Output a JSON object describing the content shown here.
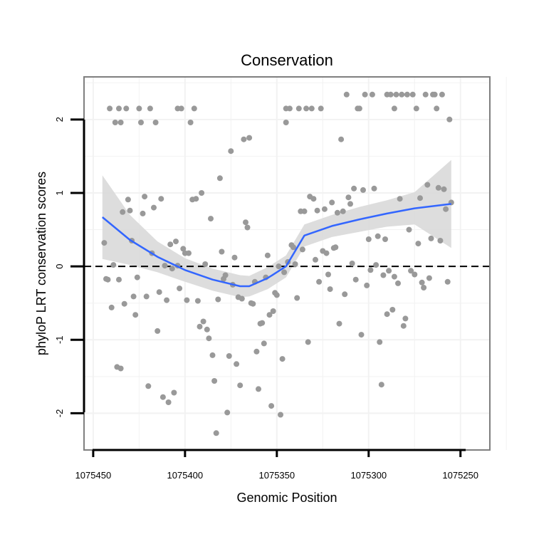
{
  "chart_data": {
    "type": "scatter",
    "title": "Conservation",
    "xlabel": "Genomic Position",
    "ylabel": "phyloP LRT conservation scores",
    "x_reversed": true,
    "xlim": [
      1075455,
      1075234
    ],
    "ylim": [
      -2.5,
      2.58
    ],
    "x_ticks": [
      1075450,
      1075400,
      1075350,
      1075300,
      1075250
    ],
    "x_tick_labels": [
      "1075450",
      "1075400",
      "1075350",
      "1075300",
      "1075250"
    ],
    "y_ticks": [
      -2,
      -1,
      0,
      1,
      2
    ],
    "y_tick_labels": [
      "-2",
      "-1",
      "0",
      "1",
      "2"
    ],
    "reference_line": {
      "y": 0,
      "style": "dashed"
    },
    "colors": {
      "points": "#999999",
      "smooth_line": "#3366ff",
      "ribbon": "#d9d9d9",
      "panel_border": "#7f7f7f",
      "grid": "#f2f2f2",
      "reference": "#000000"
    },
    "series": [
      {
        "name": "scores",
        "points": [
          [
            1075444,
            0.32
          ],
          [
            1075443,
            -0.17
          ],
          [
            1075442,
            -0.18
          ],
          [
            1075441,
            2.15
          ],
          [
            1075440,
            -0.56
          ],
          [
            1075439,
            0.02
          ],
          [
            1075438,
            1.96
          ],
          [
            1075437,
            -1.37
          ],
          [
            1075436,
            2.15
          ],
          [
            1075436,
            -0.18
          ],
          [
            1075435,
            -1.39
          ],
          [
            1075435,
            1.96
          ],
          [
            1075434,
            0.74
          ],
          [
            1075433,
            -0.51
          ],
          [
            1075432,
            2.15
          ],
          [
            1075431,
            0.91
          ],
          [
            1075430,
            0.76
          ],
          [
            1075429,
            0.35
          ],
          [
            1075428,
            -0.41
          ],
          [
            1075427,
            -0.66
          ],
          [
            1075426,
            -0.15
          ],
          [
            1075425,
            2.15
          ],
          [
            1075424,
            1.96
          ],
          [
            1075423,
            0.72
          ],
          [
            1075422,
            0.95
          ],
          [
            1075421,
            -0.41
          ],
          [
            1075420,
            -1.63
          ],
          [
            1075419,
            2.15
          ],
          [
            1075418,
            0.18
          ],
          [
            1075417,
            0.8
          ],
          [
            1075416,
            1.96
          ],
          [
            1075415,
            -0.88
          ],
          [
            1075414,
            -0.35
          ],
          [
            1075413,
            0.92
          ],
          [
            1075412,
            -1.78
          ],
          [
            1075411,
            0.01
          ],
          [
            1075410,
            -0.46
          ],
          [
            1075409,
            -1.85
          ],
          [
            1075408,
            0.3
          ],
          [
            1075407,
            -0.03
          ],
          [
            1075406,
            -1.72
          ],
          [
            1075405,
            0.34
          ],
          [
            1075404,
            2.15
          ],
          [
            1075404,
            0.01
          ],
          [
            1075403,
            -0.3
          ],
          [
            1075402,
            2.15
          ],
          [
            1075401,
            0.24
          ],
          [
            1075400,
            0.18
          ],
          [
            1075399,
            -0.46
          ],
          [
            1075398,
            0.18
          ],
          [
            1075397,
            1.96
          ],
          [
            1075396,
            0.91
          ],
          [
            1075395,
            2.15
          ],
          [
            1075394,
            0.92
          ],
          [
            1075393,
            -0.47
          ],
          [
            1075392,
            -0.82
          ],
          [
            1075391,
            1.0
          ],
          [
            1075390,
            -0.75
          ],
          [
            1075389,
            0.03
          ],
          [
            1075388,
            -0.86
          ],
          [
            1075387,
            -0.98
          ],
          [
            1075386,
            0.65
          ],
          [
            1075385,
            -1.21
          ],
          [
            1075384,
            -1.56
          ],
          [
            1075383,
            -2.27
          ],
          [
            1075382,
            -0.45
          ],
          [
            1075381,
            1.2
          ],
          [
            1075380,
            0.2
          ],
          [
            1075379,
            -0.17
          ],
          [
            1075378,
            -0.12
          ],
          [
            1075377,
            -1.99
          ],
          [
            1075376,
            -1.22
          ],
          [
            1075375,
            1.57
          ],
          [
            1075374,
            -0.25
          ],
          [
            1075373,
            0.12
          ],
          [
            1075372,
            -1.33
          ],
          [
            1075371,
            -0.42
          ],
          [
            1075370,
            -1.62
          ],
          [
            1075369,
            -0.44
          ],
          [
            1075368,
            1.73
          ],
          [
            1075367,
            0.6
          ],
          [
            1075366,
            0.53
          ],
          [
            1075365,
            1.75
          ],
          [
            1075364,
            -0.5
          ],
          [
            1075363,
            -0.51
          ],
          [
            1075362,
            -0.21
          ],
          [
            1075361,
            -1.16
          ],
          [
            1075360,
            -1.67
          ],
          [
            1075359,
            -0.78
          ],
          [
            1075358,
            -0.77
          ],
          [
            1075357,
            -1.05
          ],
          [
            1075356,
            -0.15
          ],
          [
            1075355,
            0.15
          ],
          [
            1075354,
            -0.66
          ],
          [
            1075353,
            -1.9
          ],
          [
            1075352,
            -0.61
          ],
          [
            1075351,
            -0.36
          ],
          [
            1075350,
            -0.39
          ],
          [
            1075349,
            0.0
          ],
          [
            1075348,
            -2.02
          ],
          [
            1075347,
            -1.26
          ],
          [
            1075346,
            -0.08
          ],
          [
            1075345,
            2.15
          ],
          [
            1075345,
            1.96
          ],
          [
            1075344,
            0.06
          ],
          [
            1075343,
            2.15
          ],
          [
            1075342,
            0.29
          ],
          [
            1075341,
            0.26
          ],
          [
            1075340,
            0.03
          ],
          [
            1075339,
            -0.43
          ],
          [
            1075338,
            2.15
          ],
          [
            1075337,
            0.75
          ],
          [
            1075336,
            0.23
          ],
          [
            1075335,
            0.75
          ],
          [
            1075334,
            2.15
          ],
          [
            1075333,
            -1.03
          ],
          [
            1075332,
            0.95
          ],
          [
            1075331,
            2.15
          ],
          [
            1075330,
            0.92
          ],
          [
            1075329,
            0.09
          ],
          [
            1075328,
            0.76
          ],
          [
            1075327,
            -0.21
          ],
          [
            1075326,
            2.15
          ],
          [
            1075325,
            0.21
          ],
          [
            1075324,
            0.78
          ],
          [
            1075323,
            0.18
          ],
          [
            1075322,
            -0.11
          ],
          [
            1075321,
            -0.31
          ],
          [
            1075320,
            0.87
          ],
          [
            1075319,
            0.25
          ],
          [
            1075318,
            0.26
          ],
          [
            1075317,
            0.73
          ],
          [
            1075316,
            -0.78
          ],
          [
            1075315,
            1.73
          ],
          [
            1075314,
            0.75
          ],
          [
            1075313,
            -0.38
          ],
          [
            1075312,
            2.34
          ],
          [
            1075311,
            0.94
          ],
          [
            1075310,
            0.85
          ],
          [
            1075309,
            0.04
          ],
          [
            1075308,
            1.06
          ],
          [
            1075307,
            -0.18
          ],
          [
            1075306,
            2.15
          ],
          [
            1075305,
            2.15
          ],
          [
            1075304,
            -0.93
          ],
          [
            1075303,
            1.04
          ],
          [
            1075302,
            2.34
          ],
          [
            1075301,
            -0.26
          ],
          [
            1075300,
            0.37
          ],
          [
            1075299,
            -0.05
          ],
          [
            1075298,
            2.34
          ],
          [
            1075297,
            1.06
          ],
          [
            1075296,
            0.02
          ],
          [
            1075295,
            0.41
          ],
          [
            1075294,
            -1.03
          ],
          [
            1075293,
            -1.61
          ],
          [
            1075292,
            -0.12
          ],
          [
            1075291,
            0.37
          ],
          [
            1075290,
            2.34
          ],
          [
            1075290,
            -0.65
          ],
          [
            1075289,
            -0.06
          ],
          [
            1075288,
            2.34
          ],
          [
            1075287,
            -0.59
          ],
          [
            1075286,
            2.15
          ],
          [
            1075286,
            -0.14
          ],
          [
            1075285,
            2.34
          ],
          [
            1075284,
            -0.23
          ],
          [
            1075283,
            0.92
          ],
          [
            1075282,
            2.34
          ],
          [
            1075281,
            -0.81
          ],
          [
            1075280,
            -0.71
          ],
          [
            1075279,
            2.34
          ],
          [
            1075278,
            0.5
          ],
          [
            1075277,
            -0.06
          ],
          [
            1075276,
            2.34
          ],
          [
            1075275,
            -0.11
          ],
          [
            1075274,
            2.15
          ],
          [
            1075273,
            0.31
          ],
          [
            1075272,
            0.93
          ],
          [
            1075271,
            -0.22
          ],
          [
            1075270,
            -0.29
          ],
          [
            1075269,
            2.34
          ],
          [
            1075268,
            1.11
          ],
          [
            1075267,
            -0.16
          ],
          [
            1075266,
            0.38
          ],
          [
            1075265,
            2.34
          ],
          [
            1075264,
            2.34
          ],
          [
            1075263,
            2.15
          ],
          [
            1075262,
            1.07
          ],
          [
            1075261,
            0.35
          ],
          [
            1075260,
            2.34
          ],
          [
            1075259,
            1.05
          ],
          [
            1075258,
            0.78
          ],
          [
            1075257,
            -0.21
          ],
          [
            1075256,
            2.0
          ],
          [
            1075255,
            0.87
          ]
        ]
      }
    ],
    "smooth": {
      "x": [
        1075445,
        1075430,
        1075415,
        1075400,
        1075385,
        1075370,
        1075365,
        1075355,
        1075345,
        1075335,
        1075320,
        1075305,
        1075290,
        1075275,
        1075255
      ],
      "y": [
        0.67,
        0.36,
        0.13,
        -0.05,
        -0.18,
        -0.27,
        -0.27,
        -0.16,
        0.0,
        0.42,
        0.55,
        0.64,
        0.72,
        0.79,
        0.85
      ],
      "lower": [
        0.1,
        0.02,
        -0.08,
        -0.21,
        -0.33,
        -0.42,
        -0.41,
        -0.31,
        -0.15,
        0.27,
        0.4,
        0.47,
        0.54,
        0.57,
        0.25
      ],
      "upper": [
        1.24,
        0.7,
        0.34,
        0.11,
        -0.03,
        -0.12,
        -0.13,
        -0.01,
        0.15,
        0.57,
        0.7,
        0.81,
        0.9,
        1.01,
        1.45
      ]
    }
  }
}
